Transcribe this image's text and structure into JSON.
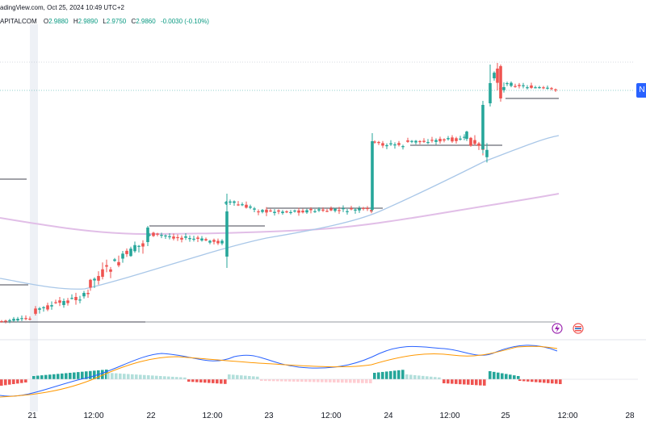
{
  "header": {
    "source_line": "adingView.com, Oct 25, 2024 10:49 UTC+2",
    "symbol": "APITALCOM",
    "open_label": "O",
    "open": "2.9880",
    "high_label": "H",
    "high": "2.9890",
    "low_label": "L",
    "low": "2.9750",
    "close_label": "C",
    "close": "2.9860",
    "change": "-0.0030 (-0.10%)"
  },
  "price_tag": "N",
  "x_axis": {
    "labels": [
      "21",
      "12:00",
      "22",
      "12:00",
      "23",
      "12:00",
      "24",
      "12:00",
      "25",
      "12:00",
      "28"
    ]
  },
  "colors": {
    "up": "#26a69a",
    "down": "#ef5350",
    "ema_fast": "#a9c7e8",
    "ema_slow": "#e1bee7",
    "macd": "#2962ff",
    "signal": "#ff9800",
    "accent": "#2962ff"
  },
  "icons": [
    "lightning-icon",
    "flag-icon"
  ]
}
